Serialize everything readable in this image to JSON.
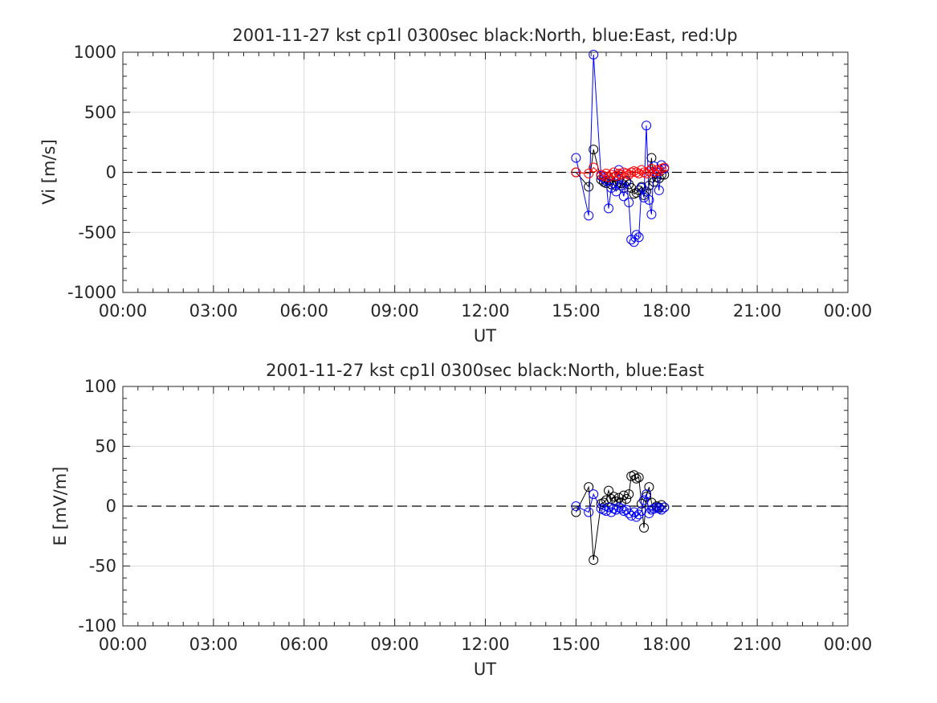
{
  "colors": {
    "north": "#000000",
    "east": "#0000ff",
    "up": "#ff0000",
    "grid": "#dcdcdc",
    "axis": "#262626",
    "zero_line": "#000000"
  },
  "chart_data": [
    {
      "type": "line",
      "title": "2001-11-27 kst cp1l 0300sec black:North, blue:East, red:Up",
      "xlabel": "UT",
      "ylabel": "Vi [m/s]",
      "xlim": [
        0,
        24
      ],
      "ylim": [
        -1000,
        1000
      ],
      "xticks": [
        0,
        3,
        6,
        9,
        12,
        15,
        18,
        21,
        24
      ],
      "xtick_labels": [
        "00:00",
        "03:00",
        "06:00",
        "09:00",
        "12:00",
        "15:00",
        "18:00",
        "21:00",
        "00:00"
      ],
      "yticks": [
        -1000,
        -500,
        0,
        500,
        1000
      ],
      "ytick_labels": [
        "-1000",
        "-500",
        "0",
        "500",
        "1000"
      ],
      "grid": true,
      "zero_line": true,
      "marker": "circle",
      "series": [
        {
          "name": "North",
          "color": "#000000",
          "x": [
            15.0,
            15.42,
            15.58,
            15.83,
            15.92,
            16.0,
            16.08,
            16.17,
            16.25,
            16.33,
            16.42,
            16.5,
            16.58,
            16.67,
            16.75,
            16.83,
            16.92,
            17.0,
            17.08,
            17.17,
            17.25,
            17.33,
            17.42,
            17.5,
            17.58,
            17.67,
            17.75,
            17.83,
            17.92
          ],
          "y": [
            0,
            -120,
            190,
            -60,
            -80,
            -90,
            -70,
            -100,
            -40,
            -110,
            -60,
            -90,
            -130,
            -70,
            -100,
            -130,
            -180,
            -170,
            -150,
            -120,
            -190,
            -160,
            -110,
            120,
            -80,
            -40,
            -50,
            -20,
            -20
          ]
        },
        {
          "name": "East",
          "color": "#0000ff",
          "x": [
            15.0,
            15.42,
            15.58,
            15.83,
            15.92,
            16.0,
            16.08,
            16.17,
            16.25,
            16.33,
            16.42,
            16.5,
            16.58,
            16.67,
            16.75,
            16.83,
            16.92,
            17.0,
            17.08,
            17.17,
            17.25,
            17.33,
            17.42,
            17.5,
            17.58,
            17.67,
            17.75,
            17.83,
            17.92
          ],
          "y": [
            120,
            -360,
            980,
            -30,
            -50,
            -70,
            -300,
            -130,
            -90,
            -160,
            20,
            -110,
            -200,
            -80,
            -250,
            -560,
            -580,
            -520,
            -540,
            -130,
            -210,
            390,
            -230,
            -350,
            50,
            0,
            -150,
            60,
            30
          ]
        },
        {
          "name": "Up",
          "color": "#ff0000",
          "x": [
            15.0,
            15.42,
            15.58,
            15.83,
            15.92,
            16.0,
            16.08,
            16.17,
            16.25,
            16.33,
            16.42,
            16.5,
            16.58,
            16.67,
            16.75,
            16.83,
            16.92,
            17.0,
            17.08,
            17.17,
            17.25,
            17.33,
            17.42,
            17.5,
            17.58,
            17.67,
            17.75,
            17.83,
            17.92
          ],
          "y": [
            0,
            -10,
            40,
            -20,
            -30,
            -10,
            -40,
            -20,
            0,
            -30,
            -10,
            -20,
            0,
            -10,
            -20,
            0,
            10,
            0,
            -10,
            20,
            0,
            -10,
            10,
            30,
            0,
            20,
            10,
            30,
            40
          ]
        }
      ]
    },
    {
      "type": "line",
      "title": "2001-11-27 kst cp1l 0300sec black:North, blue:East",
      "xlabel": "UT",
      "ylabel": "E [mV/m]",
      "xlim": [
        0,
        24
      ],
      "ylim": [
        -100,
        100
      ],
      "xticks": [
        0,
        3,
        6,
        9,
        12,
        15,
        18,
        21,
        24
      ],
      "xtick_labels": [
        "00:00",
        "03:00",
        "06:00",
        "09:00",
        "12:00",
        "15:00",
        "18:00",
        "21:00",
        "00:00"
      ],
      "yticks": [
        -100,
        -50,
        0,
        50,
        100
      ],
      "ytick_labels": [
        "-100",
        "-50",
        "0",
        "50",
        "100"
      ],
      "grid": true,
      "zero_line": true,
      "marker": "circle",
      "series": [
        {
          "name": "North",
          "color": "#000000",
          "x": [
            15.0,
            15.42,
            15.58,
            15.83,
            15.92,
            16.0,
            16.08,
            16.17,
            16.25,
            16.33,
            16.42,
            16.5,
            16.58,
            16.67,
            16.75,
            16.83,
            16.92,
            17.0,
            17.08,
            17.17,
            17.25,
            17.33,
            17.42,
            17.5,
            17.58,
            17.67,
            17.75,
            17.83,
            17.92
          ],
          "y": [
            -5,
            16,
            -45,
            2,
            3,
            5,
            13,
            6,
            8,
            4,
            7,
            3,
            9,
            6,
            10,
            25,
            26,
            23,
            24,
            2,
            -18,
            8,
            16,
            3,
            -2,
            0,
            -1,
            1,
            -1
          ]
        },
        {
          "name": "East",
          "color": "#0000ff",
          "x": [
            15.0,
            15.42,
            15.58,
            15.83,
            15.92,
            16.0,
            16.08,
            16.17,
            16.25,
            16.33,
            16.42,
            16.5,
            16.58,
            16.67,
            16.75,
            16.83,
            16.92,
            17.0,
            17.08,
            17.17,
            17.25,
            17.33,
            17.42,
            17.5,
            17.58,
            17.67,
            17.75,
            17.83,
            17.92
          ],
          "y": [
            0,
            -5,
            10,
            -2,
            -3,
            -4,
            -1,
            -5,
            -2,
            -3,
            -1,
            -2,
            -4,
            -3,
            -6,
            -8,
            -5,
            -9,
            -7,
            -4,
            5,
            10,
            -6,
            -3,
            -2,
            -1,
            -2,
            -3,
            -1
          ]
        }
      ]
    }
  ]
}
